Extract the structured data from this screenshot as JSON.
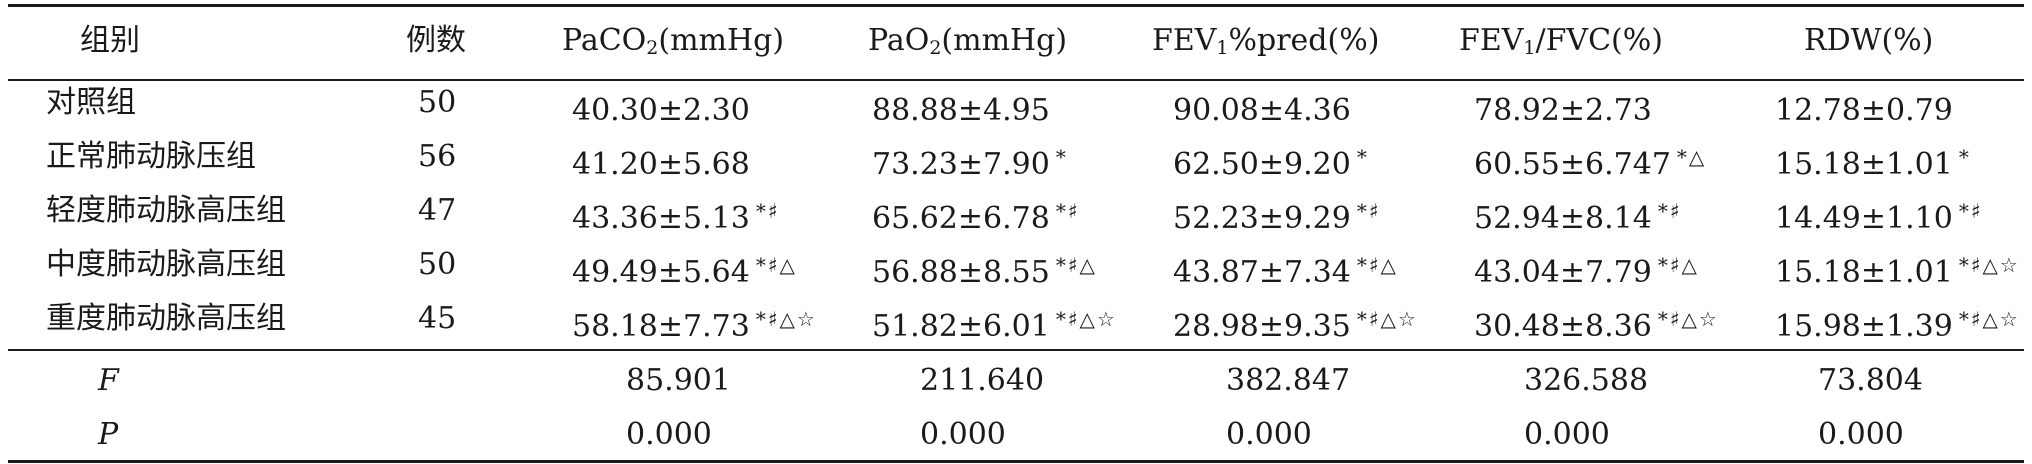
{
  "table": {
    "headers": {
      "group": "组别",
      "n": "例数",
      "paco2_pre": "PaCO",
      "paco2_sub": "2",
      "paco2_post": "(mmHg)",
      "pao2_pre": "PaO",
      "pao2_sub": "2",
      "pao2_post": "(mmHg)",
      "fev1pred_pre": "FEV",
      "fev1pred_sub": "1",
      "fev1pred_post": "%pred(%)",
      "fev1fvc_pre": "FEV",
      "fev1fvc_sub": "1",
      "fev1fvc_post": "/FVC(%)",
      "rdw": "RDW(%)"
    },
    "rows": [
      {
        "group": "对照组",
        "n": "50",
        "paco2": "40.30±2.30",
        "paco2_mark": "",
        "pao2": "88.88±4.95",
        "pao2_mark": "",
        "fev1pred": "90.08±4.36",
        "fev1pred_mark": "",
        "fev1fvc": "78.92±2.73",
        "fev1fvc_mark": "",
        "rdw": "12.78±0.79",
        "rdw_mark": ""
      },
      {
        "group": "正常肺动脉压组",
        "n": "56",
        "paco2": "41.20±5.68",
        "paco2_mark": "",
        "pao2": "73.23±7.90",
        "pao2_mark": "*",
        "fev1pred": "62.50±9.20",
        "fev1pred_mark": "*",
        "fev1fvc": "60.55±6.747",
        "fev1fvc_mark": "*△",
        "rdw": "15.18±1.01",
        "rdw_mark": "*"
      },
      {
        "group": "轻度肺动脉高压组",
        "n": "47",
        "paco2": "43.36±5.13",
        "paco2_mark": "*♯",
        "pao2": "65.62±6.78",
        "pao2_mark": "*♯",
        "fev1pred": "52.23±9.29",
        "fev1pred_mark": "*♯",
        "fev1fvc": "52.94±8.14",
        "fev1fvc_mark": "*♯",
        "rdw": "14.49±1.10",
        "rdw_mark": "*♯"
      },
      {
        "group": "中度肺动脉高压组",
        "n": "50",
        "paco2": "49.49±5.64",
        "paco2_mark": "*♯△",
        "pao2": "56.88±8.55",
        "pao2_mark": "*♯△",
        "fev1pred": "43.87±7.34",
        "fev1pred_mark": "*♯△",
        "fev1fvc": "43.04±7.79",
        "fev1fvc_mark": "*♯△",
        "rdw": "15.18±1.01",
        "rdw_mark": "*♯△☆"
      },
      {
        "group": "重度肺动脉高压组",
        "n": "45",
        "paco2": "58.18±7.73",
        "paco2_mark": "*♯△☆",
        "pao2": "51.82±6.01",
        "pao2_mark": "*♯△☆",
        "fev1pred": "28.98±9.35",
        "fev1pred_mark": "*♯△☆",
        "fev1fvc": "30.48±8.36",
        "fev1fvc_mark": "*♯△☆",
        "rdw": "15.98±1.39",
        "rdw_mark": "*♯△☆"
      }
    ],
    "stats": [
      {
        "label": "F",
        "paco2": "85.901",
        "pao2": "211.640",
        "fev1pred": "382.847",
        "fev1fvc": "326.588",
        "rdw": "73.804"
      },
      {
        "label": "P",
        "paco2": "0.000",
        "pao2": "0.000",
        "fev1pred": "0.000",
        "fev1fvc": "0.000",
        "rdw": "0.000"
      }
    ]
  }
}
